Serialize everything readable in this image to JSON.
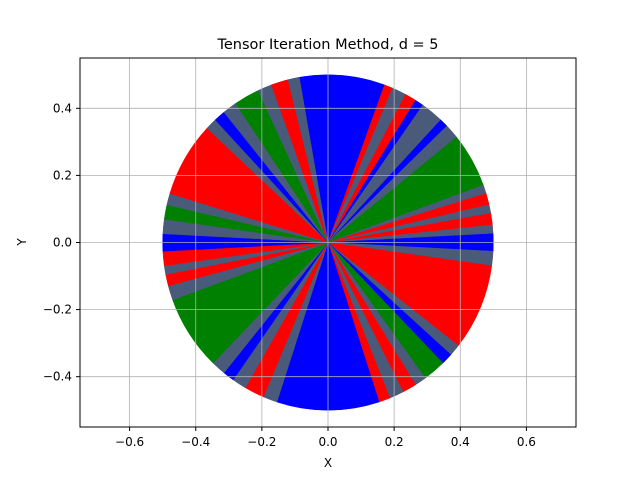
{
  "chart_data": {
    "type": "pie",
    "title": "Tensor Iteration Method, d = 5",
    "xlabel": "X",
    "ylabel": "Y",
    "xlim": [
      -0.75,
      0.75
    ],
    "ylim": [
      -0.55,
      0.55
    ],
    "xticks": [
      -0.6,
      -0.4,
      -0.2,
      0.0,
      0.2,
      0.4,
      0.6
    ],
    "xtick_labels": [
      "−0.6",
      "−0.4",
      "−0.2",
      "0.0",
      "0.2",
      "0.4",
      "0.6"
    ],
    "yticks": [
      -0.4,
      -0.2,
      0.0,
      0.2,
      0.4
    ],
    "ytick_labels": [
      "−0.4",
      "−0.2",
      "0.0",
      "0.2",
      "0.4"
    ],
    "grid": true,
    "radius": 0.5,
    "center": [
      0,
      0
    ],
    "colors": {
      "blue": "#0000ff",
      "green": "#008000",
      "red": "#ff0000",
      "slate": "#4a5a7a"
    },
    "sectors": [
      {
        "from": 70,
        "to": 110,
        "color": "blue"
      },
      {
        "from": 67,
        "to": 70,
        "color": "red"
      },
      {
        "from": 62,
        "to": 67,
        "color": "slate"
      },
      {
        "from": 58,
        "to": 62,
        "color": "red"
      },
      {
        "from": 55,
        "to": 58,
        "color": "blue"
      },
      {
        "from": 47,
        "to": 55,
        "color": "slate"
      },
      {
        "from": 44,
        "to": 47,
        "color": "blue"
      },
      {
        "from": 39,
        "to": 44,
        "color": "slate"
      },
      {
        "from": 20,
        "to": 39,
        "color": "green"
      },
      {
        "from": 17,
        "to": 20,
        "color": "slate"
      },
      {
        "from": 13,
        "to": 17,
        "color": "red"
      },
      {
        "from": 10,
        "to": 13,
        "color": "slate"
      },
      {
        "from": 6,
        "to": 10,
        "color": "red"
      },
      {
        "from": 3,
        "to": 6,
        "color": "slate"
      },
      {
        "from": -3,
        "to": 3,
        "color": "blue"
      },
      {
        "from": -8,
        "to": -3,
        "color": "slate"
      },
      {
        "from": -38,
        "to": -8,
        "color": "red"
      },
      {
        "from": -42,
        "to": -38,
        "color": "slate"
      },
      {
        "from": -46,
        "to": -42,
        "color": "blue"
      },
      {
        "from": -54,
        "to": -46,
        "color": "green"
      },
      {
        "from": -58,
        "to": -54,
        "color": "slate"
      },
      {
        "from": -63,
        "to": -58,
        "color": "red"
      },
      {
        "from": -68,
        "to": -63,
        "color": "slate"
      },
      {
        "from": -72,
        "to": -68,
        "color": "red"
      },
      {
        "from": -108,
        "to": -72,
        "color": "blue"
      },
      {
        "from": -113,
        "to": -108,
        "color": "slate"
      },
      {
        "from": -120,
        "to": -113,
        "color": "red"
      },
      {
        "from": -125,
        "to": -120,
        "color": "slate"
      },
      {
        "from": -129,
        "to": -125,
        "color": "blue"
      },
      {
        "from": -134,
        "to": -129,
        "color": "slate"
      },
      {
        "from": -160,
        "to": -134,
        "color": "green"
      },
      {
        "from": -165,
        "to": -160,
        "color": "slate"
      },
      {
        "from": -169,
        "to": -165,
        "color": "red"
      },
      {
        "from": -172,
        "to": -169,
        "color": "slate"
      },
      {
        "from": -177,
        "to": -172,
        "color": "red"
      },
      {
        "from": -183,
        "to": -177,
        "color": "blue"
      },
      {
        "from": -188,
        "to": -183,
        "color": "slate"
      },
      {
        "from": -193,
        "to": -188,
        "color": "green"
      },
      {
        "from": -197,
        "to": -193,
        "color": "slate"
      },
      {
        "from": -223,
        "to": -197,
        "color": "red"
      },
      {
        "from": -227,
        "to": -223,
        "color": "slate"
      },
      {
        "from": -231,
        "to": -227,
        "color": "blue"
      },
      {
        "from": -236,
        "to": -231,
        "color": "slate"
      },
      {
        "from": -245,
        "to": -236,
        "color": "green"
      },
      {
        "from": -250,
        "to": -245,
        "color": "slate"
      },
      {
        "from": -256,
        "to": -250,
        "color": "red"
      },
      {
        "from": -260,
        "to": -256,
        "color": "slate"
      }
    ]
  }
}
